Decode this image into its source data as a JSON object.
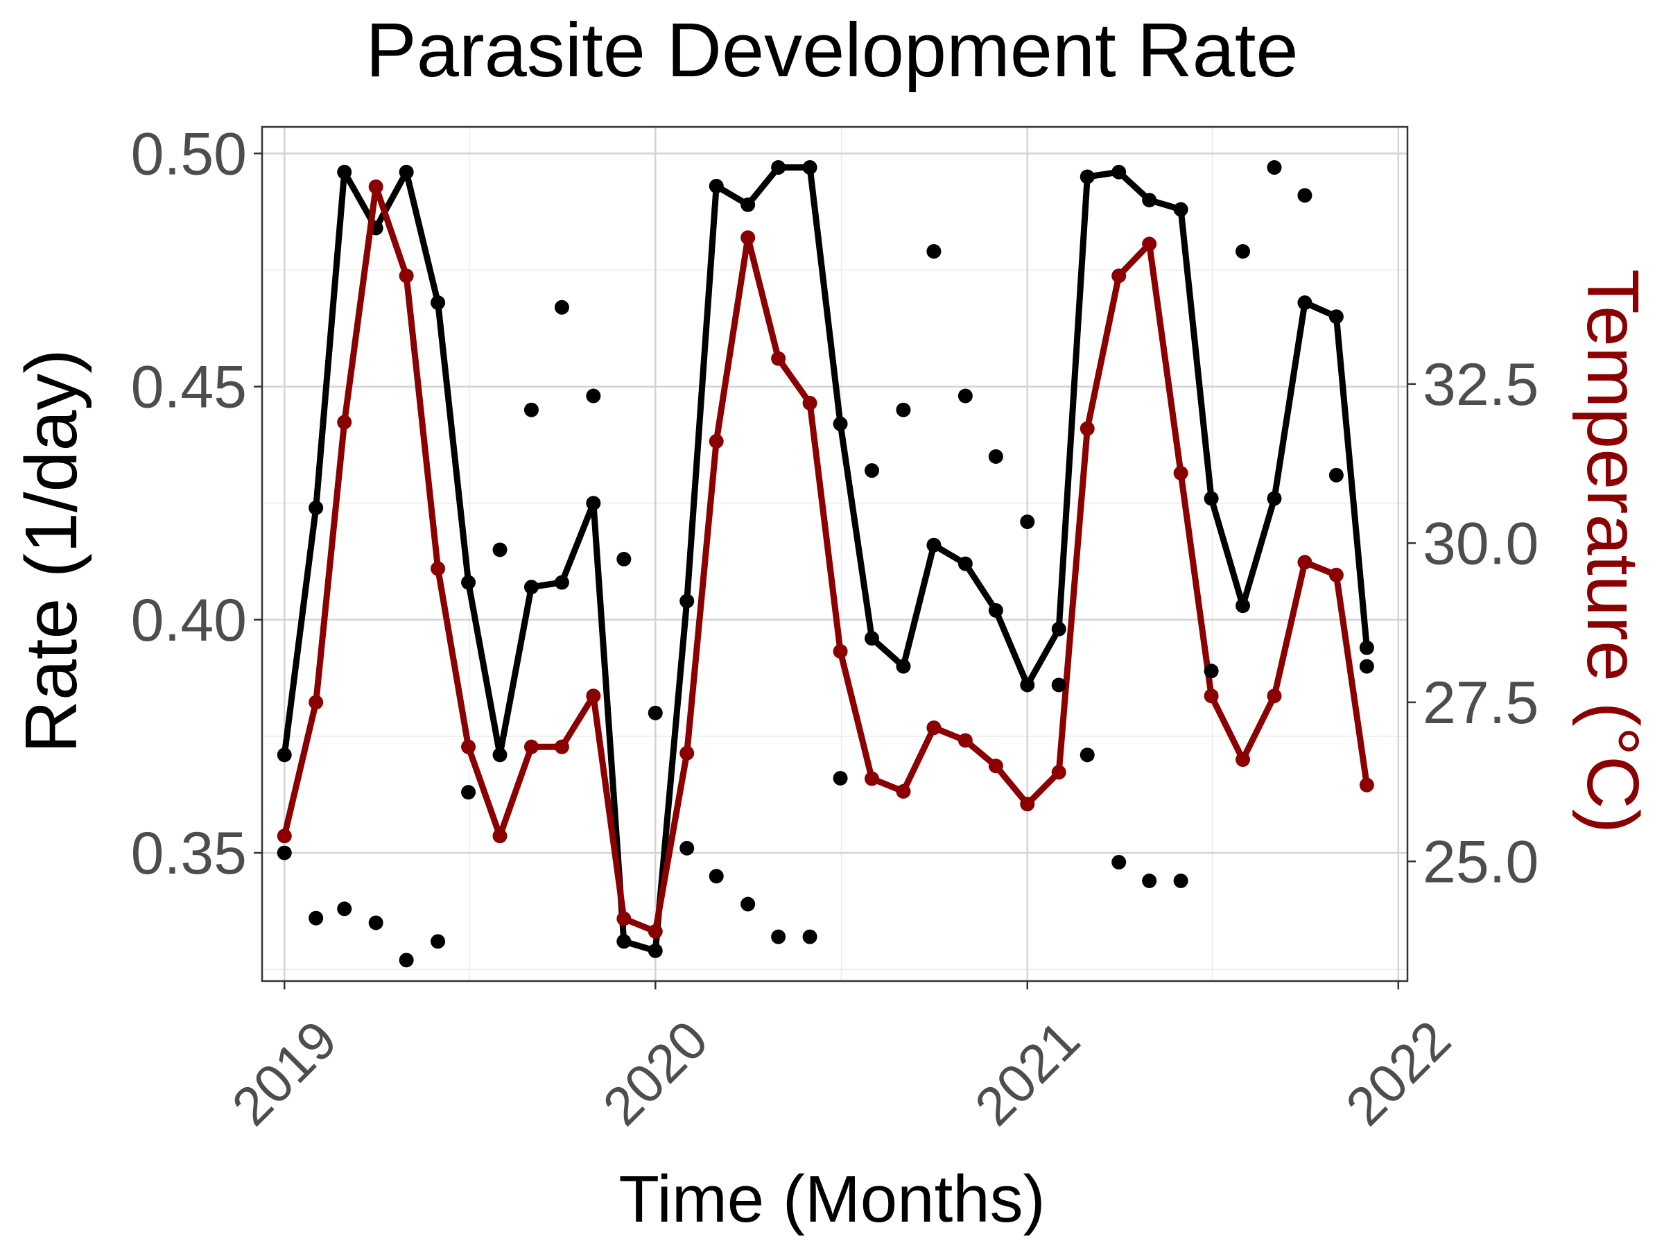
{
  "chart_data": {
    "type": "line",
    "title": "Parasite Development Rate",
    "xlabel": "Time (Months)",
    "ylabel": "Rate (1/day)",
    "y2label": "Temperature (°C)",
    "x": [
      "2019-01",
      "2019-02",
      "2019-03",
      "2019-04",
      "2019-05",
      "2019-06",
      "2019-07",
      "2019-08",
      "2019-09",
      "2019-10",
      "2019-11",
      "2019-12",
      "2020-01",
      "2020-02",
      "2020-03",
      "2020-04",
      "2020-05",
      "2020-06",
      "2020-07",
      "2020-08",
      "2020-09",
      "2020-10",
      "2020-11",
      "2020-12",
      "2021-01",
      "2021-02",
      "2021-03",
      "2021-04",
      "2021-05",
      "2021-06",
      "2021-07",
      "2021-08",
      "2021-09",
      "2021-10",
      "2021-11",
      "2021-12"
    ],
    "xlim": [
      "2018-12-10",
      "2022-01-10"
    ],
    "xticks": [
      "2019",
      "2020",
      "2021",
      "2022"
    ],
    "ylim": [
      0.3225,
      0.5057
    ],
    "yticks": [
      "0.35",
      "0.40",
      "0.45",
      "0.50"
    ],
    "y2lim": [
      23.12,
      36.54
    ],
    "y2ticks": [
      "25.0",
      "27.5",
      "30.0",
      "32.5"
    ],
    "grid": true,
    "series": [
      {
        "type": "line",
        "axis": "left",
        "color": "#000000",
        "values": [
          0.371,
          0.424,
          0.496,
          0.484,
          0.496,
          0.468,
          0.408,
          0.371,
          0.407,
          0.408,
          0.425,
          0.331,
          0.329,
          0.404,
          0.493,
          0.489,
          0.497,
          0.497,
          0.442,
          0.396,
          0.39,
          0.416,
          0.412,
          0.402,
          0.386,
          0.398,
          0.495,
          0.496,
          0.49,
          0.488,
          0.426,
          0.403,
          0.426,
          0.468,
          0.465,
          0.394
        ]
      },
      {
        "type": "line",
        "axis": "right",
        "color": "#8b0000",
        "values": [
          25.4,
          27.5,
          31.9,
          35.6,
          34.2,
          29.6,
          26.8,
          25.4,
          26.8,
          26.8,
          27.6,
          24.1,
          23.9,
          26.7,
          31.6,
          34.8,
          32.9,
          32.2,
          28.3,
          26.3,
          26.1,
          27.1,
          26.9,
          26.5,
          25.9,
          26.4,
          31.8,
          34.2,
          34.7,
          31.1,
          27.6,
          26.6,
          27.6,
          29.7,
          29.5,
          26.2
        ]
      },
      {
        "type": "scatter",
        "axis": "left",
        "color": "#000000",
        "values": [
          0.35,
          0.336,
          0.338,
          0.335,
          0.327,
          0.331,
          0.363,
          0.415,
          0.445,
          0.467,
          0.448,
          0.413,
          0.38,
          0.351,
          0.345,
          0.339,
          0.332,
          0.332,
          0.366,
          0.432,
          0.445,
          0.479,
          0.448,
          0.435,
          0.421,
          0.386,
          0.371,
          0.348,
          0.344,
          0.344,
          0.389,
          0.479,
          0.497,
          0.491,
          0.431,
          0.39
        ]
      }
    ]
  },
  "colors": {
    "rate_line": "#000000",
    "temperature_line": "#8b0000",
    "points": "#000000",
    "grid_major": "#d3d3d3",
    "grid_minor": "#ebebeb",
    "panel_border": "#333333",
    "tick_text": "#4d4d4d",
    "title_text": "#000000",
    "temperature_axis_text": "#8b0000"
  }
}
